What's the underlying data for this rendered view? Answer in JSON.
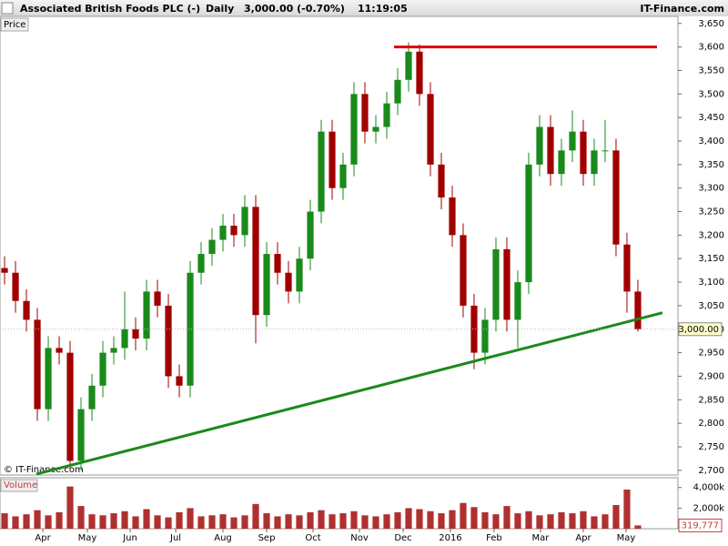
{
  "chart_data": {
    "type": "candlestick",
    "title": "Associated British Foods PLC (-)",
    "interval": "Daily",
    "quote": "3,000.00 (-0.70%)",
    "time": "11:19:05",
    "brand": "IT-Finance.com",
    "price_label": "Price",
    "volume_label": "Volume",
    "watermark": "© IT-Finance.com",
    "up_color": "#1a8a1a",
    "down_color": "#a00000",
    "xlim": [
      -0.42,
      61.67
    ],
    "xticks": [
      {
        "value": 3.5,
        "label": "Apr"
      },
      {
        "value": 7.58,
        "label": "May"
      },
      {
        "value": 11.5,
        "label": "Jun"
      },
      {
        "value": 15.67,
        "label": "Jul"
      },
      {
        "value": 20,
        "label": "Aug"
      },
      {
        "value": 24,
        "label": "Sep"
      },
      {
        "value": 28.25,
        "label": "Oct"
      },
      {
        "value": 32.5,
        "label": "Nov"
      },
      {
        "value": 36.5,
        "label": "Dec"
      },
      {
        "value": 40.83,
        "label": "2016"
      },
      {
        "value": 44.83,
        "label": "Feb"
      },
      {
        "value": 49.08,
        "label": "Mar"
      },
      {
        "value": 53,
        "label": "Apr"
      },
      {
        "value": 56.92,
        "label": "May"
      }
    ],
    "ylim": [
      2690,
      3665
    ],
    "yticks": [
      {
        "value": 2700,
        "label": "2,700"
      },
      {
        "value": 2750,
        "label": "2,750"
      },
      {
        "value": 2800,
        "label": "2,800"
      },
      {
        "value": 2850,
        "label": "2,850"
      },
      {
        "value": 2900,
        "label": "2,900"
      },
      {
        "value": 2950,
        "label": "2,950"
      },
      {
        "value": 3000,
        "label": "3,000"
      },
      {
        "value": 3050,
        "label": "3,050"
      },
      {
        "value": 3100,
        "label": "3,100"
      },
      {
        "value": 3150,
        "label": "3,150"
      },
      {
        "value": 3200,
        "label": "3,200"
      },
      {
        "value": 3250,
        "label": "3,250"
      },
      {
        "value": 3300,
        "label": "3,300"
      },
      {
        "value": 3350,
        "label": "3,350"
      },
      {
        "value": 3400,
        "label": "3,400"
      },
      {
        "value": 3450,
        "label": "3,450"
      },
      {
        "value": 3500,
        "label": "3,500"
      },
      {
        "value": 3550,
        "label": "3,550"
      },
      {
        "value": 3600,
        "label": "3,600"
      },
      {
        "value": 3650,
        "label": "3,650"
      }
    ],
    "open": [
      3130,
      3120,
      3060,
      3020,
      2830,
      2960,
      2950,
      2720,
      2830,
      2880,
      2950,
      2960,
      3000,
      2980,
      3080,
      3050,
      2900,
      2880,
      3120,
      3160,
      3190,
      3220,
      3200,
      3260,
      3030,
      3160,
      3120,
      3080,
      3150,
      3250,
      3420,
      3300,
      3350,
      3500,
      3420,
      3430,
      3480,
      3530,
      3590,
      3500,
      3350,
      3280,
      3200,
      3050,
      2950,
      3020,
      3170,
      3020,
      3100,
      3350,
      3430,
      3330,
      3380,
      3420,
      3330,
      3380,
      3380,
      3180,
      3080
    ],
    "high": [
      3155,
      3145,
      3085,
      3045,
      2985,
      2985,
      2975,
      2855,
      2905,
      2975,
      2985,
      3080,
      3025,
      3105,
      3105,
      3075,
      2925,
      3145,
      3185,
      3215,
      3245,
      3245,
      3285,
      3285,
      3185,
      3185,
      3145,
      3175,
      3275,
      3445,
      3445,
      3375,
      3525,
      3525,
      3455,
      3505,
      3555,
      3610,
      3605,
      3525,
      3375,
      3305,
      3225,
      3075,
      3045,
      3195,
      3195,
      3125,
      3375,
      3455,
      3455,
      3405,
      3465,
      3445,
      3405,
      3445,
      3405,
      3205,
      3105
    ],
    "low": [
      3095,
      3035,
      2995,
      2805,
      2805,
      2925,
      2700,
      2700,
      2805,
      2855,
      2925,
      2935,
      2955,
      2955,
      3025,
      2875,
      2855,
      2855,
      3095,
      3135,
      3165,
      3175,
      3175,
      2970,
      3005,
      3095,
      3055,
      3055,
      3125,
      3225,
      3275,
      3275,
      3325,
      3395,
      3395,
      3405,
      3455,
      3505,
      3475,
      3325,
      3255,
      3175,
      3025,
      2915,
      2925,
      2995,
      2995,
      2960,
      3075,
      3325,
      3305,
      3305,
      3355,
      3305,
      3305,
      3355,
      3155,
      3035,
      2995
    ],
    "close": [
      3120,
      3060,
      3020,
      2830,
      2960,
      2950,
      2720,
      2830,
      2880,
      2950,
      2960,
      3000,
      2980,
      3080,
      3050,
      2900,
      2880,
      3120,
      3160,
      3190,
      3220,
      3200,
      3260,
      3030,
      3160,
      3120,
      3080,
      3150,
      3250,
      3420,
      3300,
      3350,
      3500,
      3420,
      3430,
      3480,
      3530,
      3590,
      3500,
      3350,
      3280,
      3200,
      3050,
      2950,
      3020,
      3170,
      3020,
      3100,
      3350,
      3430,
      3330,
      3380,
      3420,
      3330,
      3380,
      3380,
      3180,
      3080,
      3000
    ],
    "last_price": {
      "value": 3000,
      "label": "3,000.00"
    },
    "lines": [
      {
        "color": "#e00000",
        "x": [
          35.67,
          59.75
        ],
        "y": [
          3600,
          3600
        ]
      },
      {
        "color": "#1a8a1a",
        "x": [
          2.92,
          60.25
        ],
        "y": [
          2692,
          3035
        ]
      }
    ],
    "volume": {
      "color": "#b03030",
      "ylim": [
        0,
        4950000
      ],
      "yticks": [
        {
          "value": 4000000,
          "label": "4,000k"
        },
        {
          "value": 2000000,
          "label": "2,000k"
        }
      ],
      "values": [
        1500000,
        1200000,
        1400000,
        1800000,
        1300000,
        1600000,
        4100000,
        2200000,
        1400000,
        1300000,
        1500000,
        1700000,
        1200000,
        1900000,
        1300000,
        1100000,
        1600000,
        2000000,
        1200000,
        1300000,
        1400000,
        1100000,
        1300000,
        2400000,
        1500000,
        1200000,
        1400000,
        1300000,
        1600000,
        1800000,
        1400000,
        1500000,
        1700000,
        1300000,
        1200000,
        1400000,
        1600000,
        2000000,
        1900000,
        1700000,
        1500000,
        1800000,
        2500000,
        2100000,
        1600000,
        1400000,
        2200000,
        1500000,
        1700000,
        1300000,
        1400000,
        1600000,
        1500000,
        1700000,
        1200000,
        1400000,
        2300000,
        3800000,
        319777
      ],
      "last": {
        "value": 319777,
        "label": "319,777"
      }
    }
  }
}
